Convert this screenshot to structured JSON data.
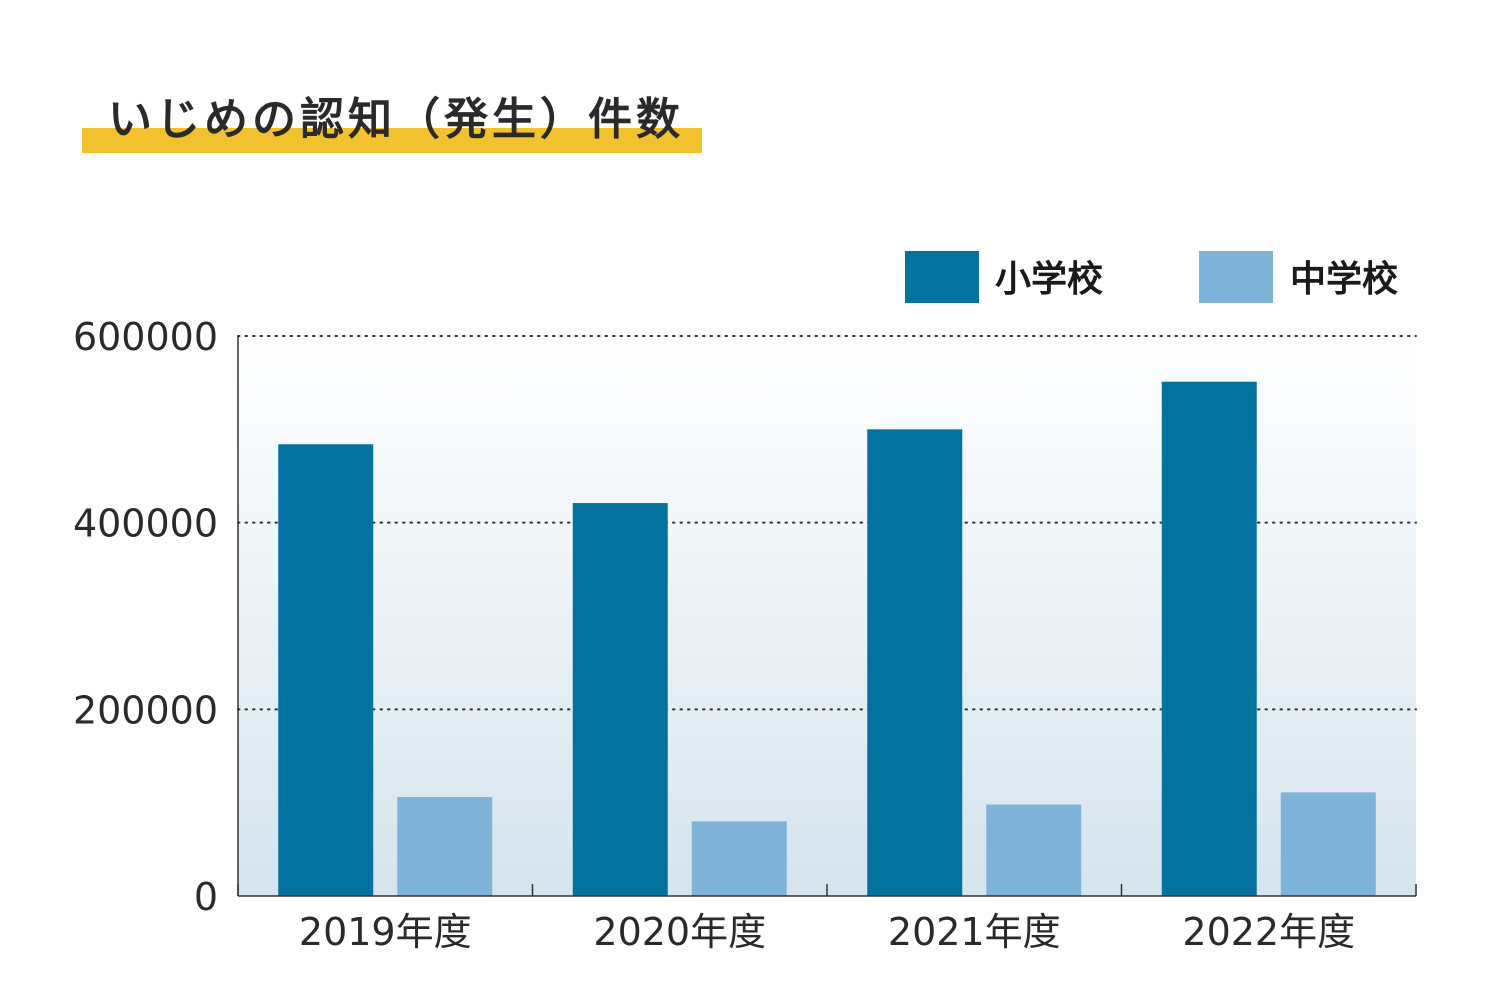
{
  "colors": {
    "elementary": "#04729f",
    "junior_high": "#7fb3d8",
    "title_underline": "#f2c12e",
    "axis": "#333333",
    "grid": "#333333",
    "text": "#2a2a2a",
    "plot_gradient_top": "#ffffff",
    "plot_gradient_bottom": "#d6e4ee"
  },
  "chart_data": {
    "type": "bar",
    "title": "いじめの認知（発生）件数",
    "categories": [
      "2019年度",
      "2020年度",
      "2021年度",
      "2022年度"
    ],
    "series": [
      {
        "name": "小学校",
        "values": [
          484000,
          421000,
          500000,
          551000
        ]
      },
      {
        "name": "中学校",
        "values": [
          106000,
          80000,
          98000,
          111000
        ]
      }
    ],
    "ylim": [
      0,
      600000
    ],
    "yticks": [
      "0",
      "200000",
      "400000",
      "600000"
    ],
    "grid": "horizontal dotted",
    "legend_position": "top-right",
    "xlabel": "",
    "ylabel": ""
  }
}
